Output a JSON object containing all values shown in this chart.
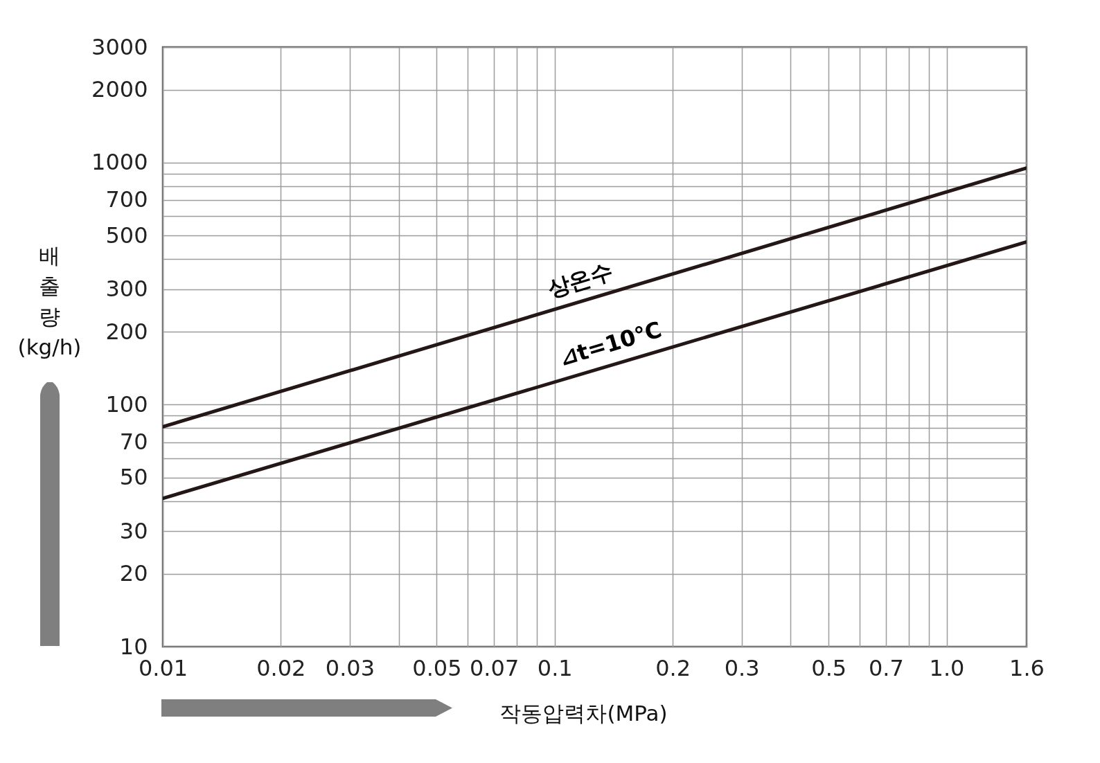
{
  "chart_data": {
    "type": "line",
    "xlabel": "작동압력차(MPa)",
    "ylabel": "배출량 (kg/h)",
    "x": [
      0.01,
      1.6
    ],
    "series": [
      {
        "name": "상온수",
        "color": "#231815",
        "values": [
          81,
          950
        ]
      },
      {
        "name": "⊿t=10℃",
        "color": "#231815",
        "values": [
          41,
          470
        ]
      }
    ],
    "log": "xy",
    "xlim": [
      0.01,
      1.6
    ],
    "ylim": [
      10,
      3000
    ],
    "xticks": [
      0.01,
      0.02,
      0.03,
      {
        "value": 0.04,
        "label": null
      },
      0.05,
      {
        "value": 0.06,
        "label": null
      },
      0.07,
      {
        "value": 0.08,
        "label": null
      },
      {
        "value": 0.09,
        "label": null
      },
      0.1,
      0.2,
      0.3,
      {
        "value": 0.4,
        "label": null
      },
      0.5,
      {
        "value": 0.6,
        "label": null
      },
      0.7,
      {
        "value": 0.8,
        "label": null
      },
      {
        "value": 0.9,
        "label": null
      },
      {
        "value": 1,
        "label": "1.0"
      },
      1.6
    ],
    "yticks": [
      10,
      20,
      30,
      {
        "value": 40,
        "label": null
      },
      50,
      {
        "value": 60,
        "label": null
      },
      70,
      {
        "value": 80,
        "label": null
      },
      {
        "value": 90,
        "label": null
      },
      100,
      200,
      300,
      {
        "value": 400,
        "label": null
      },
      500,
      {
        "value": 600,
        "label": null
      },
      700,
      {
        "value": 800,
        "label": null
      },
      {
        "value": 900,
        "label": null
      },
      1000,
      2000,
      3000
    ],
    "grid": true,
    "legend": false,
    "marker": "none",
    "line_style": "solid"
  }
}
